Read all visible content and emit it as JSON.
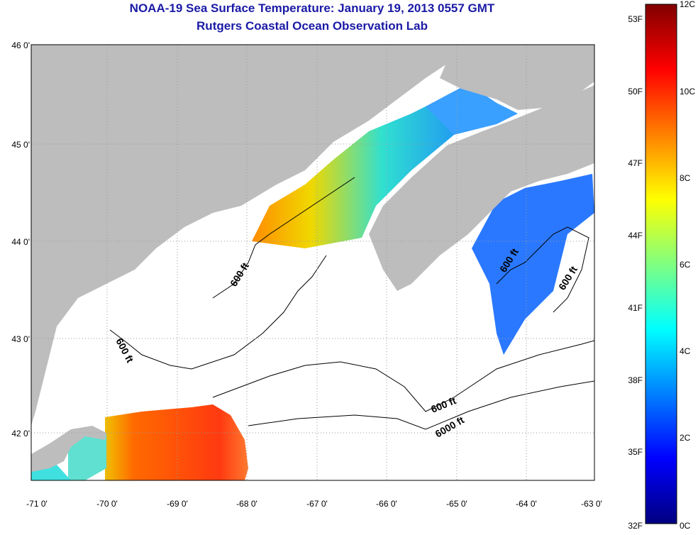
{
  "title": {
    "line1": "NOAA-19 Sea Surface Temperature:  January 19, 2013 0557 GMT",
    "line2": "Rutgers Coastal Ocean Observation Lab"
  },
  "map": {
    "colors": {
      "land": "#bdbdbd",
      "ocean": "#ffffff",
      "grid": "#9a9a9a",
      "contour": "#000000"
    },
    "lat_ticks": [
      "46 0'",
      "45 0'",
      "44 0'",
      "43 0'",
      "42 0'"
    ],
    "lon_ticks": [
      "-71 0'",
      "-70 0'",
      "-69 0'",
      "-68 0'",
      "-67 0'",
      "-66 0'",
      "-65 0'",
      "-64 0'",
      "-63 0'"
    ],
    "contour_labels": [
      "600 ft",
      "600 ft",
      "600 ft",
      "600 ft",
      "600 ft",
      "6000 ft"
    ]
  },
  "colorbar": {
    "f_labels": [
      "53F",
      "50F",
      "47F",
      "44F",
      "41F",
      "38F",
      "35F",
      "32F"
    ],
    "c_labels": [
      "12C",
      "10C",
      "8C",
      "6C",
      "4C",
      "2C",
      "0C"
    ],
    "gradient_stops": [
      "#000080",
      "#0000ff",
      "#0080ff",
      "#00ffff",
      "#80ff80",
      "#ffff00",
      "#ff8000",
      "#ff0000",
      "#800000"
    ]
  }
}
